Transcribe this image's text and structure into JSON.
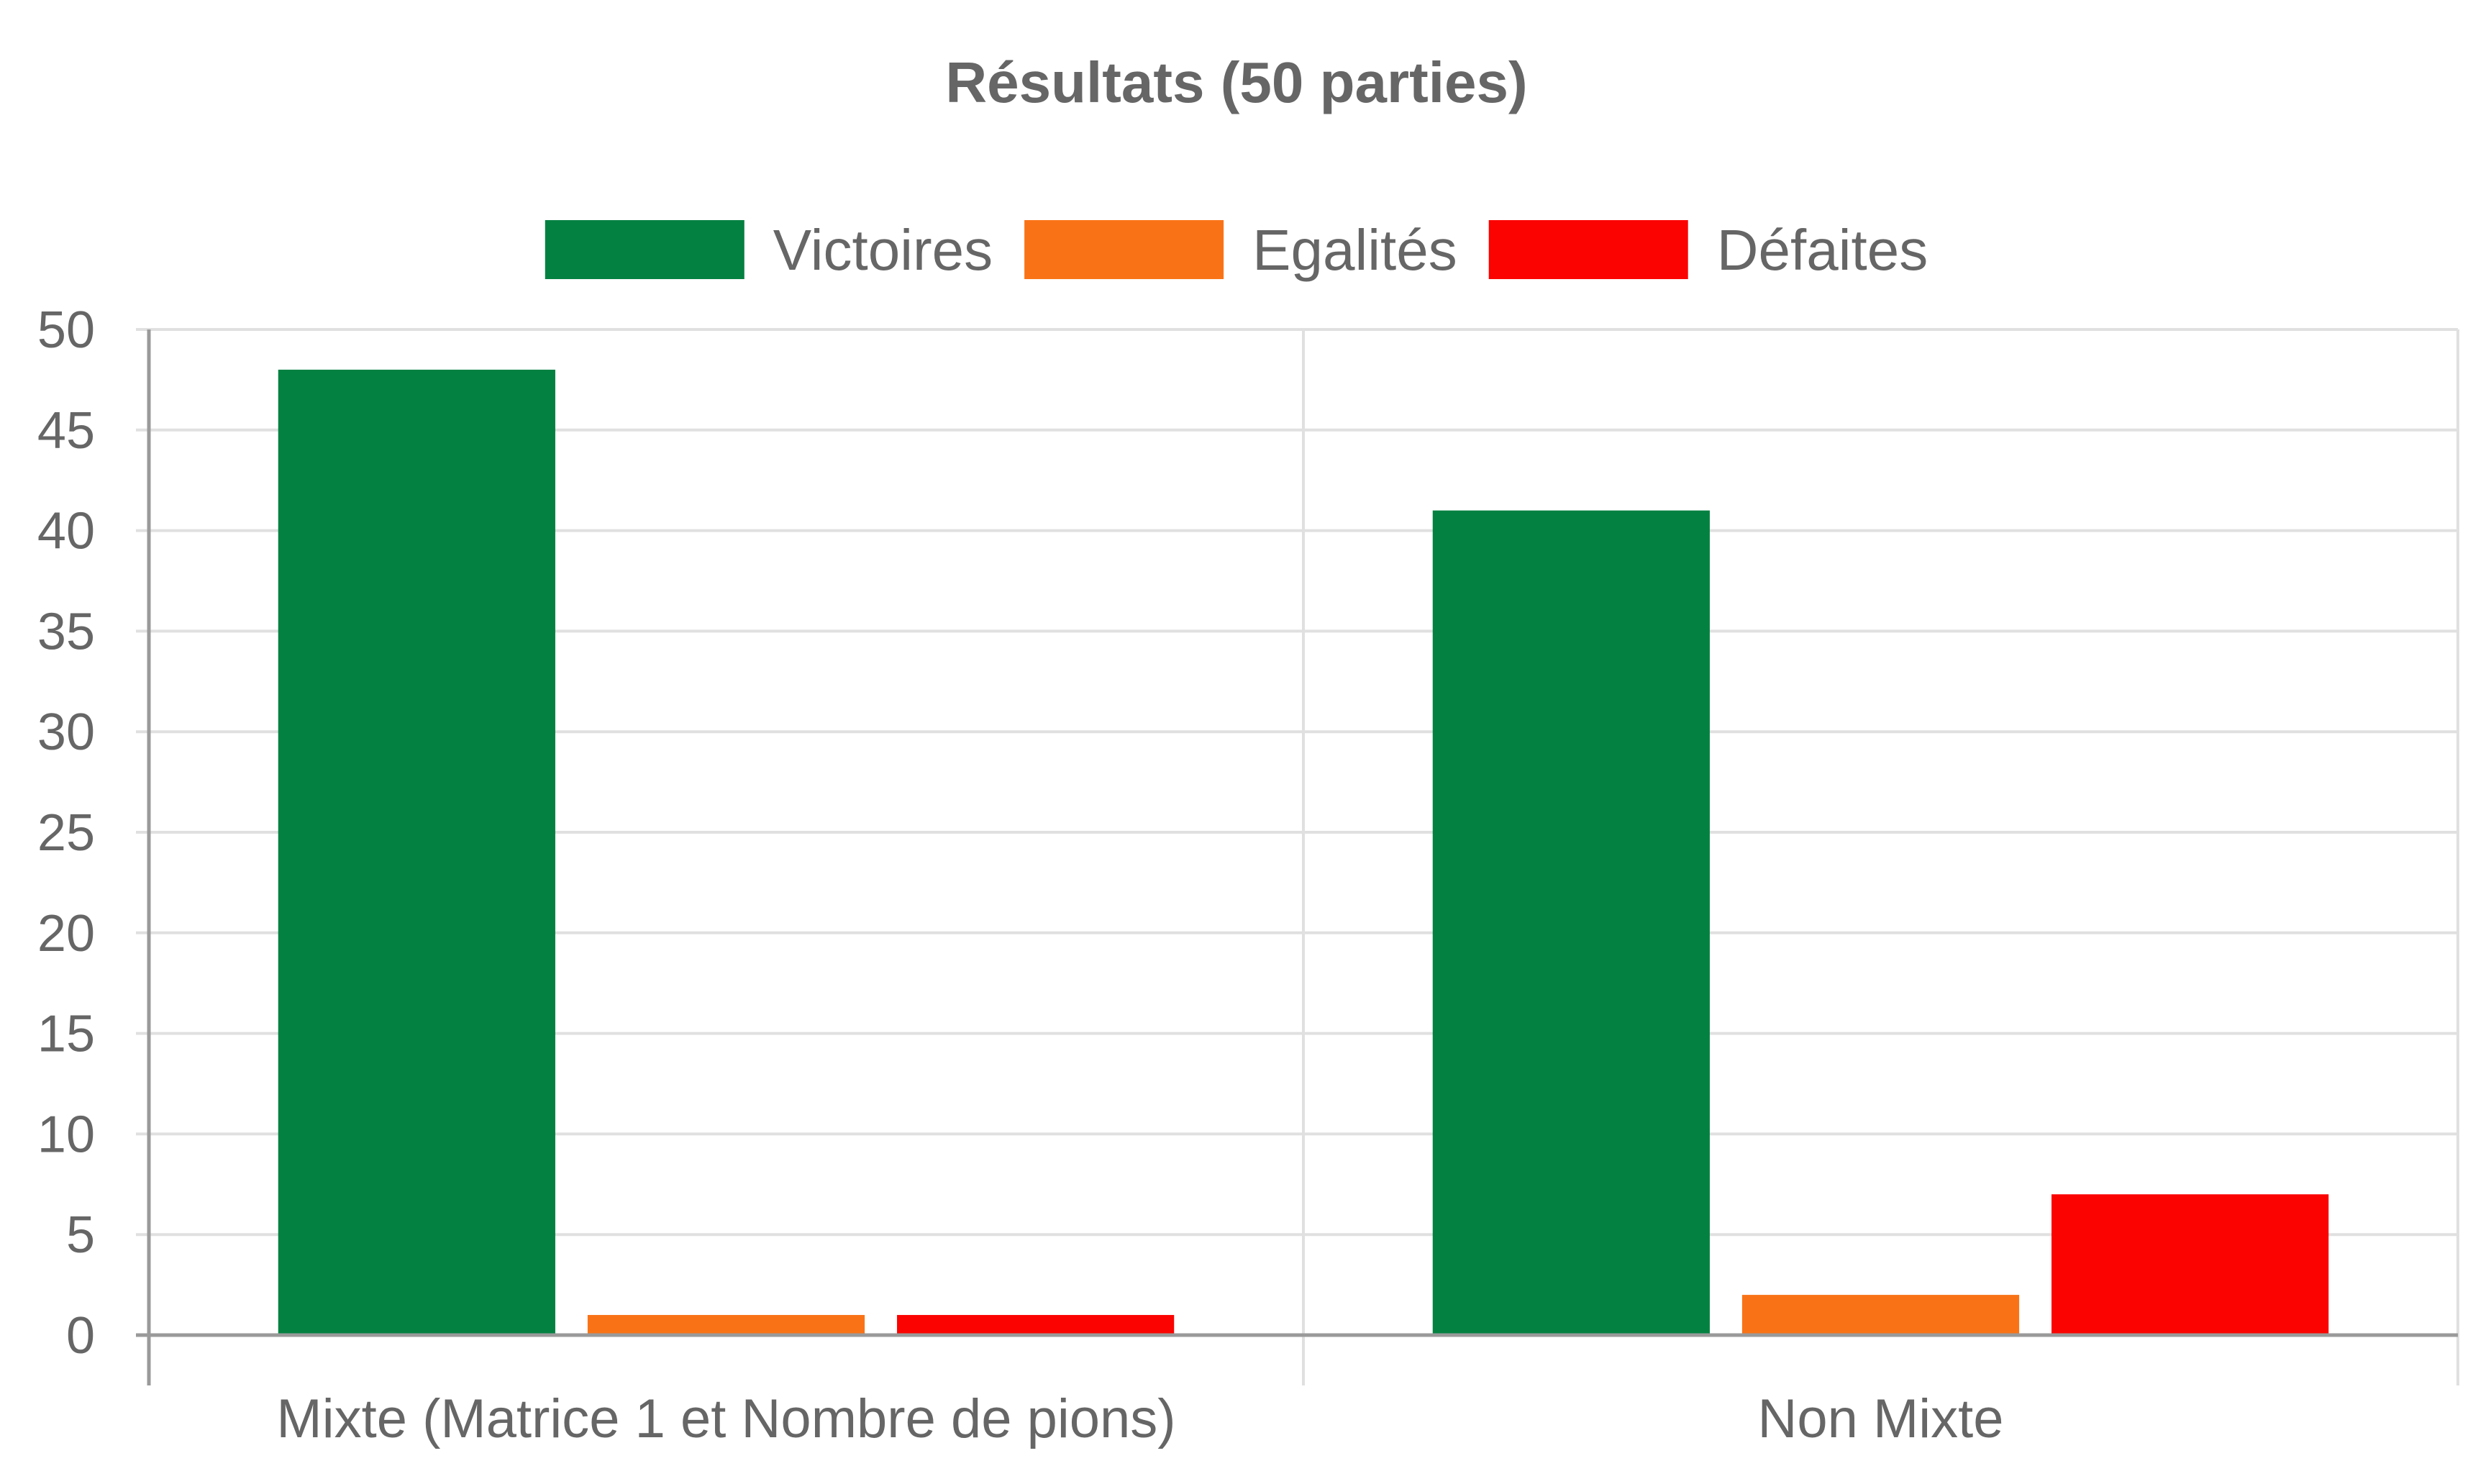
{
  "chart_data": {
    "type": "bar",
    "title": "Résultats (50 parties)",
    "categories": [
      "Mixte (Matrice 1 et Nombre de pions)",
      "Non Mixte"
    ],
    "series": [
      {
        "name": "Victoires",
        "values": [
          48,
          41
        ],
        "color": "#038141"
      },
      {
        "name": "Egalités",
        "values": [
          1,
          2
        ],
        "color": "#f97316"
      },
      {
        "name": "Défaites",
        "values": [
          1,
          7
        ],
        "color": "#fb0300"
      }
    ],
    "ylim": [
      0,
      50
    ],
    "yticks": [
      0,
      5,
      10,
      15,
      20,
      25,
      30,
      35,
      40,
      45,
      50
    ],
    "xlabel": "",
    "ylabel": "",
    "grid": true,
    "legend_position": "top"
  }
}
